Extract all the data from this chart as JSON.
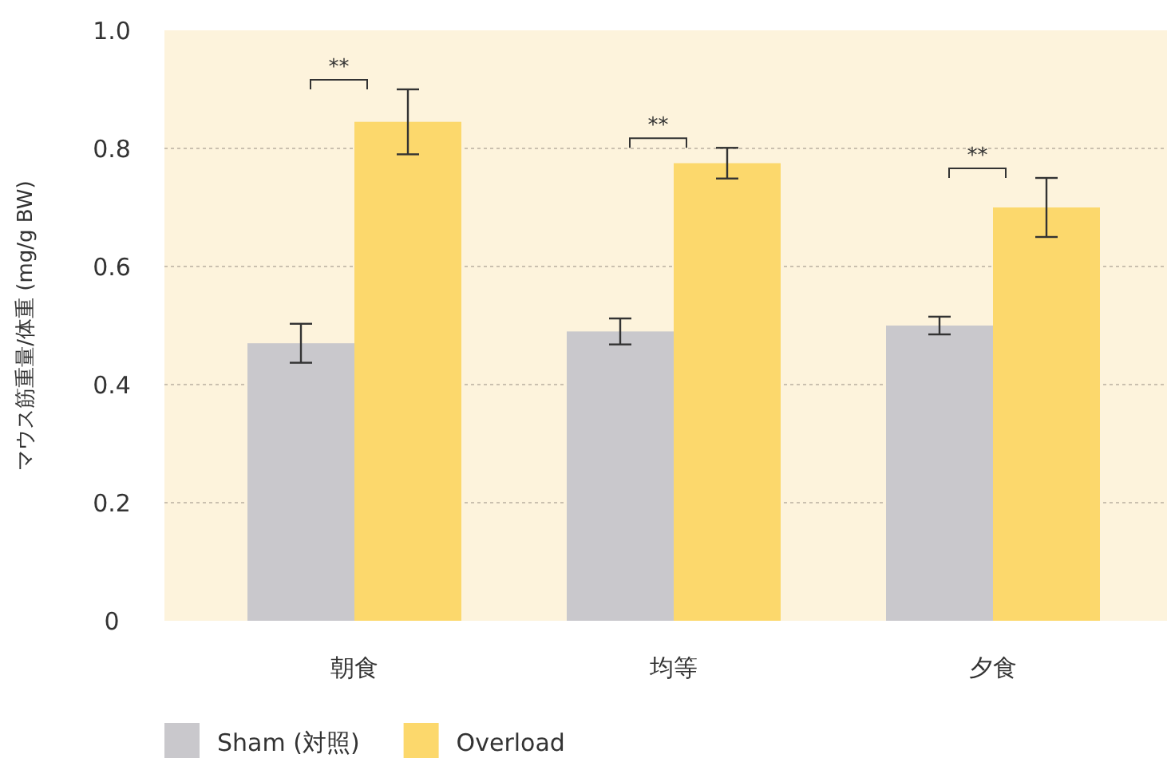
{
  "chart_data": {
    "type": "bar",
    "ylabel": "マウス筋重量/体重 (mg/g BW)",
    "categories": [
      "朝食",
      "均等",
      "夕食"
    ],
    "series": [
      {
        "name": "Sham (対照)",
        "color": "#c9c8cc",
        "values": [
          0.47,
          0.49,
          0.5
        ],
        "errors": [
          0.033,
          0.022,
          0.015
        ]
      },
      {
        "name": "Overload",
        "color": "#fcd86c",
        "values": [
          0.845,
          0.775,
          0.7
        ],
        "errors": [
          0.055,
          0.026,
          0.05
        ]
      }
    ],
    "ylim": [
      0,
      1
    ],
    "yticks": [
      0,
      0.2,
      0.4,
      0.6,
      0.8,
      {
        "value": 1,
        "label": "1.0"
      }
    ],
    "grid": "y",
    "legend": "bottom left",
    "annotations": [
      "**",
      "**",
      "**"
    ]
  }
}
